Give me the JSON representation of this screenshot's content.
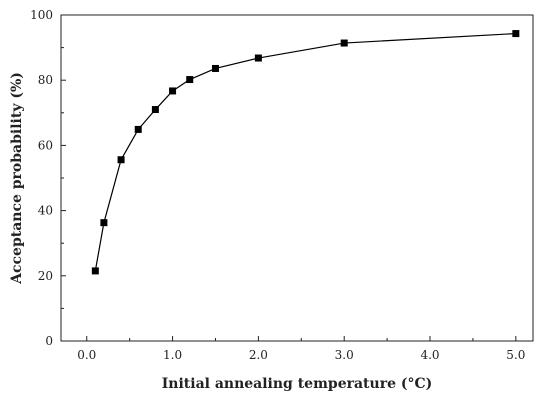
{
  "chart_data": {
    "type": "line",
    "title": "",
    "xlabel": "Initial annealing temperature (°C)",
    "ylabel": "Acceptance probability (%)",
    "xlim": [
      -0.3,
      5.2
    ],
    "ylim": [
      0,
      100
    ],
    "x_ticks": [
      0.0,
      1.0,
      2.0,
      3.0,
      4.0,
      5.0
    ],
    "x_tick_labels": [
      "0.0",
      "1.0",
      "2.0",
      "3.0",
      "4.0",
      "5.0"
    ],
    "y_ticks": [
      0,
      20,
      40,
      60,
      80,
      100
    ],
    "y_tick_labels": [
      "0",
      "20",
      "40",
      "60",
      "80",
      "100"
    ],
    "grid": false,
    "legend": "none",
    "marker": "square",
    "series": [
      {
        "x": [
          0.1,
          0.2,
          0.4,
          0.6,
          0.8,
          1.0,
          1.2,
          1.5,
          2.0,
          3.0,
          5.0
        ],
        "values": [
          21.5,
          36.3,
          55.6,
          64.9,
          71.0,
          76.7,
          80.2,
          83.6,
          86.8,
          91.4,
          94.3
        ],
        "color": "#000000"
      }
    ]
  }
}
